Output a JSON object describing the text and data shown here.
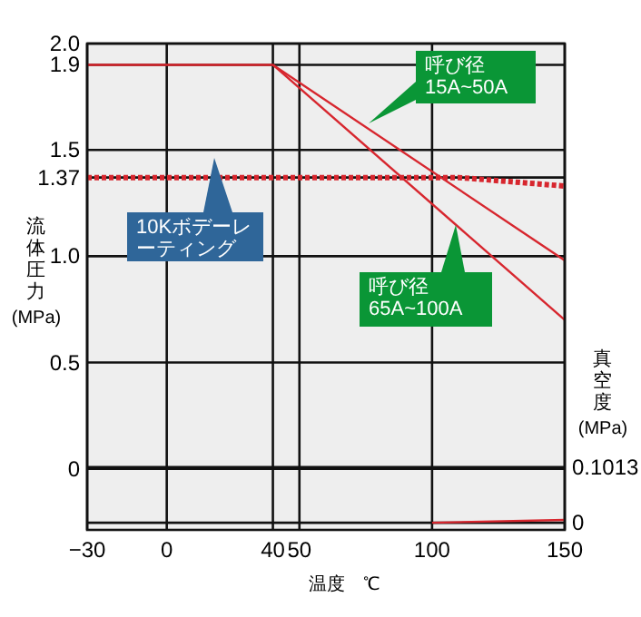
{
  "chart_data": {
    "type": "line",
    "xlabel": "温度　℃",
    "ylabel": "流体圧力 (MPa)",
    "y2label": "真空度 (MPa)",
    "xlim": [
      -30,
      150
    ],
    "xticks": [
      {
        "value": -30,
        "label": "−30"
      },
      0,
      40,
      50,
      100,
      150
    ],
    "ylim": [
      -0.287,
      2.0
    ],
    "yticks": [
      0,
      0.5,
      {
        "value": 1,
        "label": "1.0"
      },
      1.37,
      1.5,
      1.9,
      {
        "value": 2,
        "label": "2.0"
      }
    ],
    "y2lim": [
      -0.0131,
      0.8736
    ],
    "y2ticks": [
      0,
      0.1013
    ],
    "grid": true,
    "series": [
      {
        "color": "#d7262e",
        "x": [
          -30,
          40,
          150
        ],
        "values": [
          1.9,
          1.9,
          0.98
        ]
      },
      {
        "color": "#d7262e",
        "x": [
          40,
          150
        ],
        "values": [
          1.9,
          0.7
        ]
      },
      {
        "color": "#d7262e",
        "line_style": "dotted",
        "x": [
          -30,
          110,
          120,
          130,
          140,
          150
        ],
        "values": [
          1.37,
          1.37,
          1.36,
          1.35,
          1.34,
          1.33
        ]
      },
      {
        "color": "#d7262e",
        "axis": "y2",
        "x": [
          100,
          150
        ],
        "values": [
          0,
          0.005
        ]
      }
    ],
    "annotations": [
      "10Kボデーレーティング",
      "呼び径 15A~50A",
      "呼び径 65A~100A"
    ]
  }
}
